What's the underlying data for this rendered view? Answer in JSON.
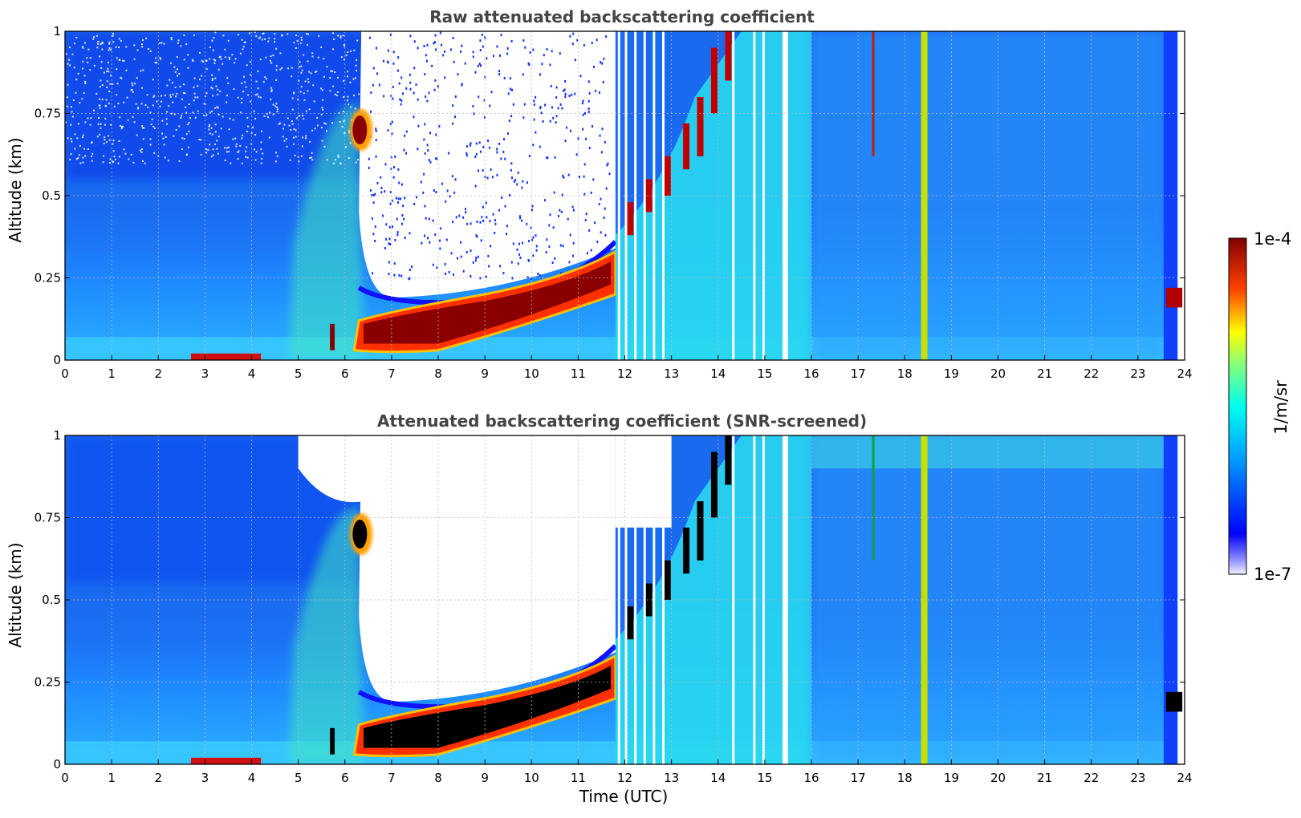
{
  "chart_data": [
    {
      "type": "heatmap",
      "title": "Raw attenuated backscattering coefficient",
      "xlabel": "",
      "ylabel": "Altitude (km)",
      "xlim": [
        0,
        24
      ],
      "ylim": [
        0,
        1
      ],
      "x_ticks": [
        "0",
        "1",
        "2",
        "3",
        "4",
        "5",
        "6",
        "7",
        "8",
        "9",
        "10",
        "11",
        "12",
        "13",
        "14",
        "15",
        "16",
        "17",
        "18",
        "19",
        "20",
        "21",
        "22",
        "23",
        "24"
      ],
      "y_ticks": [
        "0",
        "0.25",
        "0.5",
        "0.75",
        "1"
      ],
      "grid": true,
      "screened": false
    },
    {
      "type": "heatmap",
      "title": "Attenuated backscattering coefficient (SNR-screened)",
      "xlabel": "Time (UTC)",
      "ylabel": "Altitude (km)",
      "xlim": [
        0,
        24
      ],
      "ylim": [
        0,
        1
      ],
      "x_ticks": [
        "0",
        "1",
        "2",
        "3",
        "4",
        "5",
        "6",
        "7",
        "8",
        "9",
        "10",
        "11",
        "12",
        "13",
        "14",
        "15",
        "16",
        "17",
        "18",
        "19",
        "20",
        "21",
        "22",
        "23",
        "24"
      ],
      "y_ticks": [
        "0",
        "0.25",
        "0.5",
        "0.75",
        "1"
      ],
      "grid": true,
      "screened": true
    }
  ],
  "colorbar": {
    "label": "1/m/sr",
    "max_label": "1e-4",
    "min_label": "1e-7",
    "scale": "log",
    "colormap": "jet"
  }
}
